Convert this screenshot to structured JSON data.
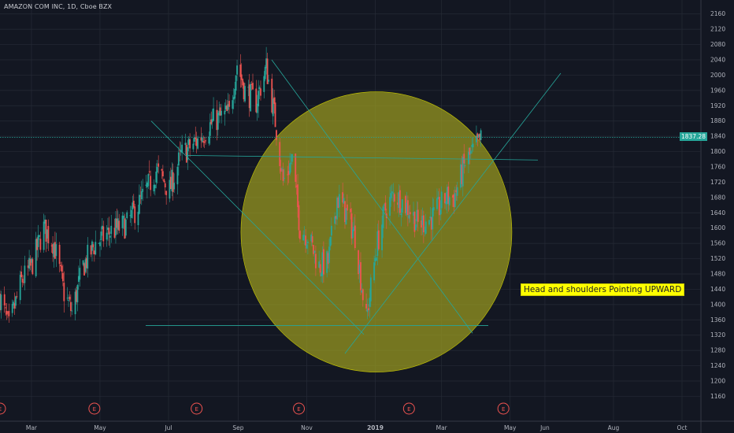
{
  "header": {
    "title": "AMAZON COM INC, 1D, Cboe BZX"
  },
  "annotation": {
    "text": "Head and shoulders Pointing UPWARD"
  },
  "colors": {
    "background": "#131722",
    "up": "#26a69a",
    "down": "#ef5350",
    "grid": "#262b36",
    "highlight_fill": "#9b9b20",
    "annotation_bg": "#ffff00",
    "trendline": "#26a69a",
    "price_box": "#26a69a"
  },
  "earnings_marker": "E",
  "chart_data": {
    "type": "candlestick",
    "title": "AMAZON COM INC, 1D, Cboe BZX",
    "ylim": [
      1130,
      2180
    ],
    "y_ticks": [
      1160,
      1200,
      1240,
      1280,
      1320,
      1360,
      1400,
      1440,
      1480,
      1520,
      1560,
      1600,
      1640,
      1680,
      1720,
      1760,
      1800,
      1840,
      1880,
      1920,
      1960,
      2000,
      2040,
      2080,
      2120,
      2160
    ],
    "x_ticks": [
      "Mar",
      "May",
      "Jul",
      "Sep",
      "Nov",
      "2019",
      "Mar",
      "May",
      "Jun",
      "Aug",
      "Oct"
    ],
    "last_price": "1837.28",
    "grid": true,
    "price_path": [
      [
        "2018-02-01",
        1420
      ],
      [
        "2018-02-09",
        1340
      ],
      [
        "2018-02-20",
        1460
      ],
      [
        "2018-03-01",
        1500
      ],
      [
        "2018-03-12",
        1600
      ],
      [
        "2018-03-21",
        1560
      ],
      [
        "2018-03-30",
        1430
      ],
      [
        "2018-04-06",
        1380
      ],
      [
        "2018-04-16",
        1500
      ],
      [
        "2018-04-27",
        1560
      ],
      [
        "2018-05-10",
        1590
      ],
      [
        "2018-05-25",
        1610
      ],
      [
        "2018-06-08",
        1680
      ],
      [
        "2018-06-20",
        1750
      ],
      [
        "2018-07-02",
        1700
      ],
      [
        "2018-07-12",
        1790
      ],
      [
        "2018-07-27",
        1830
      ],
      [
        "2018-08-10",
        1880
      ],
      [
        "2018-08-24",
        1900
      ],
      [
        "2018-08-31",
        2030
      ],
      [
        "2018-09-07",
        1960
      ],
      [
        "2018-09-17",
        1930
      ],
      [
        "2018-09-26",
        2020
      ],
      [
        "2018-10-04",
        1880
      ],
      [
        "2018-10-11",
        1720
      ],
      [
        "2018-10-19",
        1780
      ],
      [
        "2018-10-26",
        1600
      ],
      [
        "2018-11-02",
        1580
      ],
      [
        "2018-11-12",
        1500
      ],
      [
        "2018-11-20",
        1510
      ],
      [
        "2018-11-28",
        1680
      ],
      [
        "2018-12-06",
        1640
      ],
      [
        "2018-12-14",
        1580
      ],
      [
        "2018-12-24",
        1360
      ],
      [
        "2019-01-02",
        1550
      ],
      [
        "2019-01-10",
        1650
      ],
      [
        "2019-01-18",
        1690
      ],
      [
        "2019-01-31",
        1650
      ],
      [
        "2019-02-08",
        1610
      ],
      [
        "2019-02-22",
        1630
      ],
      [
        "2019-03-05",
        1680
      ],
      [
        "2019-03-12",
        1680
      ],
      [
        "2019-03-22",
        1770
      ],
      [
        "2019-03-29",
        1800
      ],
      [
        "2019-04-05",
        1830
      ]
    ],
    "earnings_dates": [
      "2018-02-01",
      "2018-04-26",
      "2018-07-26",
      "2018-10-25",
      "2019-01-31",
      "2019-04-25"
    ],
    "horizontal_lines": [
      1837.28,
      1345
    ],
    "highlight_circle": {
      "date": "2019-01-02",
      "price": 1590,
      "label": "Head and shoulders Pointing UPWARD"
    }
  }
}
